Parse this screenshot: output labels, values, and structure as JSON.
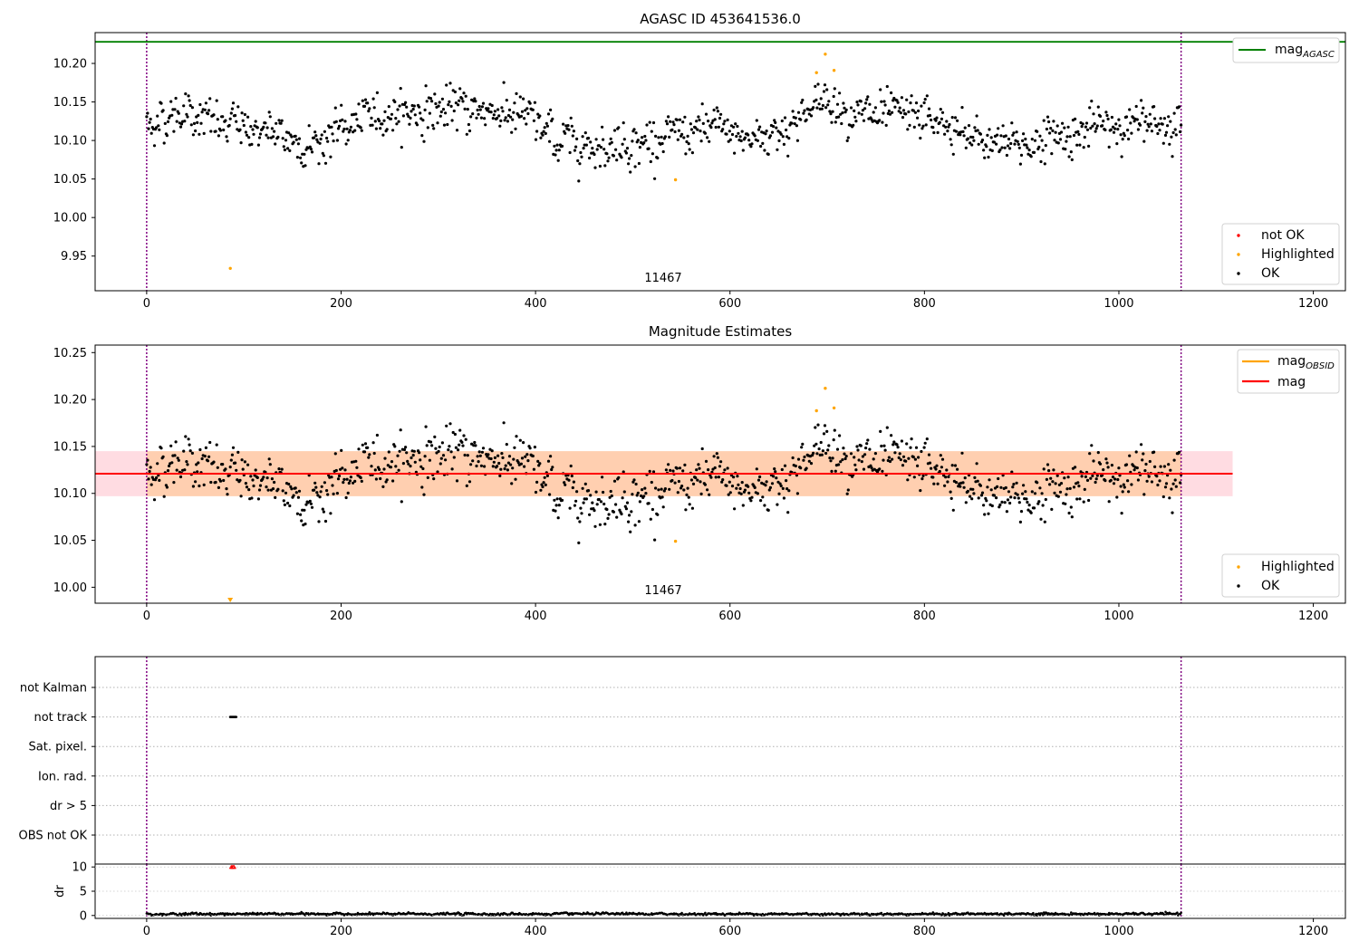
{
  "chart_data": [
    {
      "type": "scatter",
      "title": "AGASC ID 453641536.0",
      "annotation": "11467",
      "xlim": [
        -53,
        1233
      ],
      "ylim": [
        9.905,
        10.24
      ],
      "xticks": [
        0,
        200,
        400,
        600,
        800,
        1000,
        1200
      ],
      "yticks": [
        9.95,
        10.0,
        10.05,
        10.1,
        10.15,
        10.2
      ],
      "ytick_labels": [
        "9.95",
        "10.00",
        "10.05",
        "10.10",
        "10.15",
        "10.20"
      ],
      "grid": false,
      "obs_bounds": [
        0,
        1064
      ],
      "mag_agasc": 10.228,
      "legend_lines": [
        {
          "label": "mag",
          "sub": "AGASC",
          "color": "#008000"
        }
      ],
      "legend_points": [
        {
          "label": "not OK",
          "color": "#ff0000"
        },
        {
          "label": "Highlighted",
          "color": "#ffa500"
        },
        {
          "label": "OK",
          "color": "#000000"
        }
      ],
      "highlighted": [
        [
          86,
          9.934
        ],
        [
          544,
          10.049
        ],
        [
          689,
          10.188
        ],
        [
          698,
          10.212
        ],
        [
          707,
          10.191
        ]
      ],
      "ok_series": {
        "n_points": 1064,
        "x_range": [
          0,
          1064
        ],
        "trend": [
          [
            0,
            10.12
          ],
          [
            40,
            10.14
          ],
          [
            80,
            10.115
          ],
          [
            100,
            10.12
          ],
          [
            150,
            10.1
          ],
          [
            170,
            10.095
          ],
          [
            210,
            10.12
          ],
          [
            240,
            10.135
          ],
          [
            300,
            10.14
          ],
          [
            360,
            10.14
          ],
          [
            390,
            10.13
          ],
          [
            420,
            10.1
          ],
          [
            470,
            10.095
          ],
          [
            520,
            10.1
          ],
          [
            590,
            10.115
          ],
          [
            620,
            10.1
          ],
          [
            660,
            10.12
          ],
          [
            700,
            10.155
          ],
          [
            740,
            10.13
          ],
          [
            800,
            10.13
          ],
          [
            850,
            10.1
          ],
          [
            900,
            10.095
          ],
          [
            950,
            10.11
          ],
          [
            1000,
            10.12
          ],
          [
            1064,
            10.125
          ]
        ],
        "scatter_sd": 0.018
      }
    },
    {
      "type": "scatter",
      "title": "Magnitude Estimates",
      "annotation": "11467",
      "xlim": [
        -53,
        1233
      ],
      "ylim": [
        9.983,
        10.258
      ],
      "xticks": [
        0,
        200,
        400,
        600,
        800,
        1000,
        1200
      ],
      "yticks": [
        10.0,
        10.05,
        10.1,
        10.15,
        10.2,
        10.25
      ],
      "ytick_labels": [
        "10.00",
        "10.05",
        "10.10",
        "10.15",
        "10.20",
        "10.25"
      ],
      "grid": false,
      "obs_bounds": [
        0,
        1064
      ],
      "mag": 10.121,
      "mag_band": [
        10.097,
        10.145
      ],
      "mag_obsid": 10.121,
      "mag_obsid_band": [
        10.097,
        10.145
      ],
      "band_x_end": 1117,
      "legend_lines": [
        {
          "label": "mag",
          "sub": "OBSID",
          "color": "#ffa500"
        },
        {
          "label": "mag",
          "sub": "",
          "color": "#ff0000"
        }
      ],
      "legend_points": [
        {
          "label": "Highlighted",
          "color": "#ffa500"
        },
        {
          "label": "OK",
          "color": "#000000"
        }
      ],
      "highlighted": [
        [
          544,
          10.049
        ],
        [
          689,
          10.188
        ],
        [
          698,
          10.212
        ],
        [
          707,
          10.191
        ]
      ],
      "off_axis_marker": [
        86,
        9.983
      ]
    },
    {
      "type": "scatter",
      "flag_labels": [
        "not Kalman",
        "not track",
        "Sat. pixel.",
        "Ion. rad.",
        "dr > 5",
        "OBS not OK"
      ],
      "flags_set": [
        {
          "flag": "not track",
          "x": [
            86,
            87,
            88,
            89,
            90,
            91,
            92
          ]
        }
      ],
      "xlim": [
        -53,
        1233
      ],
      "xticks": [
        0,
        200,
        400,
        600,
        800,
        1000,
        1200
      ],
      "obs_bounds": [
        0,
        1064
      ],
      "dr_ylabel": "dr",
      "dr_ylim": [
        -0.6,
        10.6
      ],
      "dr_yticks": [
        0,
        5,
        10
      ],
      "dr_ytick_labels": [
        "0",
        "5",
        "10"
      ],
      "dr_outlier": {
        "x": [
          87,
          88,
          89,
          90
        ],
        "y": 10
      },
      "dr_baseline": 0.3
    }
  ]
}
